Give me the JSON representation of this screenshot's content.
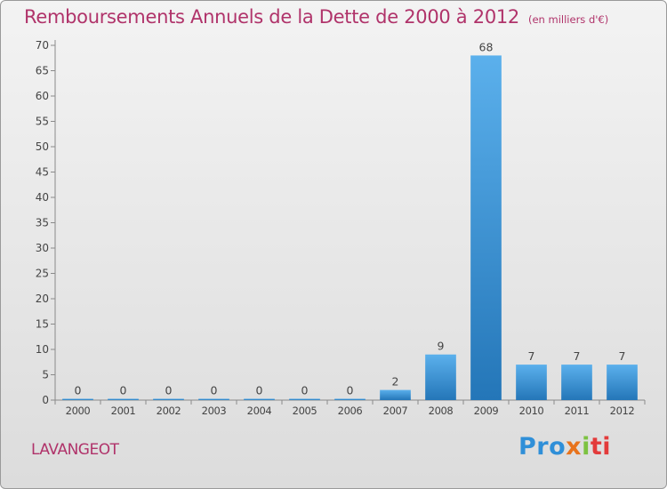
{
  "header": {
    "title": "Remboursements Annuels de la Dette de 2000 à 2012",
    "subtitle": "(en milliers d'€)"
  },
  "footer": {
    "commune": "LAVANGEOT",
    "logo_parts": [
      "Pro",
      "x",
      "i",
      "ti"
    ]
  },
  "colors": {
    "title": "#b0336a",
    "bar_light": "#5bb0ec",
    "bar_dark": "#2476b8",
    "logo_blue": "#2f8fd8",
    "logo_orange": "#e8731c",
    "logo_green": "#7cc241",
    "logo_red": "#e33b3b"
  },
  "chart_data": {
    "type": "bar",
    "title": "Remboursements Annuels de la Dette de 2000 à 2012",
    "subtitle": "(en milliers d'€)",
    "categories": [
      "2000",
      "2001",
      "2002",
      "2003",
      "2004",
      "2005",
      "2006",
      "2007",
      "2008",
      "2009",
      "2010",
      "2011",
      "2012"
    ],
    "values": [
      0,
      0,
      0,
      0,
      0,
      0,
      0,
      2,
      9,
      68,
      7,
      7,
      7
    ],
    "ylim": [
      0,
      70
    ],
    "yticks": [
      0,
      5,
      10,
      15,
      20,
      25,
      30,
      35,
      40,
      45,
      50,
      55,
      60,
      65,
      70
    ],
    "grid": false,
    "legend": "none"
  }
}
